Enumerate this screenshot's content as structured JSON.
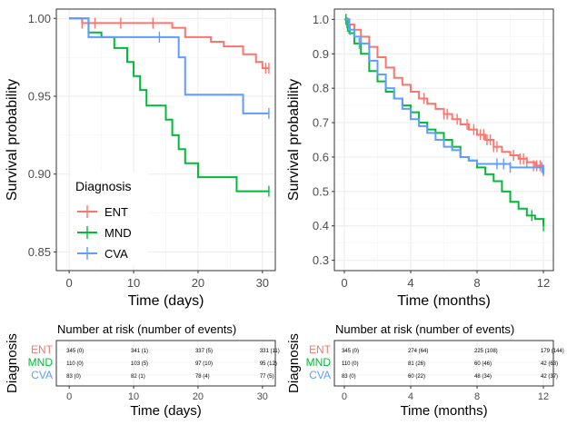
{
  "diagnosis_colors": {
    "ENT": "#F8766D",
    "MND": "#00BA38",
    "CVA": "#619CFF"
  },
  "chart_data": [
    {
      "type": "line",
      "step": true,
      "xlabel": "Time (days)",
      "ylabel": "Survival probability",
      "xlim": [
        -2,
        32
      ],
      "ylim": [
        0.838,
        1.006
      ],
      "xticks": [
        0,
        10,
        20,
        30
      ],
      "yticks": [
        "0.85",
        "0.90",
        "0.95",
        "1.00"
      ],
      "ytick_values": [
        0.85,
        0.9,
        0.95,
        1.0
      ],
      "grid": true,
      "legend": {
        "title": "Diagnosis",
        "position": "bottom-left",
        "entries": [
          "ENT",
          "MND",
          "CVA"
        ]
      },
      "series": [
        {
          "name": "ENT",
          "x": [
            0,
            2,
            5,
            16,
            18,
            20,
            22,
            24,
            27,
            29,
            30,
            31
          ],
          "y": [
            1.0,
            0.997,
            0.997,
            0.994,
            0.988,
            0.988,
            0.985,
            0.982,
            0.977,
            0.972,
            0.968,
            0.968
          ],
          "censor_x": [
            2,
            4,
            8,
            13,
            30.5,
            31
          ],
          "censor_y": [
            0.997,
            0.997,
            0.997,
            0.997,
            0.968,
            0.968
          ]
        },
        {
          "name": "MND",
          "x": [
            0,
            3,
            5,
            7,
            9,
            10,
            11,
            12,
            15,
            16,
            17,
            18,
            20,
            21,
            26,
            31
          ],
          "y": [
            1.0,
            0.991,
            0.988,
            0.981,
            0.972,
            0.963,
            0.954,
            0.944,
            0.935,
            0.925,
            0.916,
            0.907,
            0.898,
            0.898,
            0.889,
            0.889
          ],
          "censor_x": [
            3,
            31
          ],
          "censor_y": [
            0.991,
            0.889
          ]
        },
        {
          "name": "CVA",
          "x": [
            0,
            3,
            14,
            17,
            18,
            27,
            31
          ],
          "y": [
            1.0,
            0.988,
            0.988,
            0.975,
            0.951,
            0.939,
            0.939
          ],
          "censor_x": [
            14,
            31
          ],
          "censor_y": [
            0.988,
            0.939
          ]
        }
      ]
    },
    {
      "type": "line",
      "step": true,
      "xlabel": "Time (months)",
      "ylabel": "Survival probability",
      "xlim": [
        -0.6,
        12.6
      ],
      "ylim": [
        0.27,
        1.03
      ],
      "xticks": [
        0,
        4,
        8,
        12
      ],
      "yticks": [
        "0.3",
        "0.4",
        "0.5",
        "0.6",
        "0.7",
        "0.8",
        "0.9",
        "1.0"
      ],
      "ytick_values": [
        0.3,
        0.4,
        0.5,
        0.6,
        0.7,
        0.8,
        0.9,
        1.0
      ],
      "grid": true,
      "series": [
        {
          "name": "ENT",
          "x": [
            0,
            0.3,
            0.6,
            1,
            1.5,
            2,
            2.5,
            3,
            3.5,
            4,
            4.5,
            5,
            5.5,
            6,
            6.5,
            7,
            7.5,
            8,
            8.5,
            9,
            9.5,
            10,
            10.5,
            11,
            11.5,
            12
          ],
          "y": [
            1.0,
            0.985,
            0.97,
            0.95,
            0.92,
            0.89,
            0.86,
            0.83,
            0.81,
            0.79,
            0.77,
            0.755,
            0.74,
            0.725,
            0.71,
            0.695,
            0.68,
            0.665,
            0.65,
            0.63,
            0.615,
            0.605,
            0.595,
            0.585,
            0.575,
            0.56
          ],
          "censor_x": [
            0.1,
            0.2,
            4.8,
            6.0,
            6.2,
            6.8,
            7.4,
            7.8,
            8.2,
            8.4,
            8.6,
            8.8,
            9.0,
            9.2,
            10.2,
            10.6,
            10.8,
            11.0,
            11.4,
            11.6,
            11.8,
            12
          ],
          "censor_y": [
            1.0,
            0.99,
            0.77,
            0.725,
            0.725,
            0.71,
            0.695,
            0.68,
            0.665,
            0.665,
            0.65,
            0.65,
            0.63,
            0.63,
            0.605,
            0.595,
            0.595,
            0.585,
            0.575,
            0.575,
            0.575,
            0.56
          ]
        },
        {
          "name": "MND",
          "x": [
            0,
            0.3,
            0.6,
            1,
            1.5,
            2,
            2.5,
            3,
            3.5,
            4,
            4.5,
            5,
            5.5,
            6,
            6.5,
            7,
            7.5,
            8,
            8.5,
            9,
            9.5,
            10,
            10.5,
            11,
            11.5,
            12
          ],
          "y": [
            1.0,
            0.96,
            0.93,
            0.9,
            0.85,
            0.82,
            0.79,
            0.77,
            0.75,
            0.73,
            0.7,
            0.68,
            0.67,
            0.65,
            0.63,
            0.6,
            0.59,
            0.57,
            0.55,
            0.53,
            0.5,
            0.47,
            0.45,
            0.43,
            0.42,
            0.4
          ],
          "censor_x": [
            0.1,
            0.2,
            11.3,
            12
          ],
          "censor_y": [
            1.0,
            0.98,
            0.43,
            0.4
          ]
        },
        {
          "name": "CVA",
          "x": [
            0,
            0.3,
            0.6,
            1,
            1.5,
            2,
            2.5,
            3,
            3.5,
            4,
            4.5,
            5,
            5.5,
            6,
            6.5,
            7,
            7.5,
            8,
            9,
            9.5,
            10,
            11,
            12
          ],
          "y": [
            1.0,
            0.97,
            0.95,
            0.93,
            0.88,
            0.84,
            0.8,
            0.77,
            0.74,
            0.71,
            0.69,
            0.67,
            0.65,
            0.63,
            0.62,
            0.6,
            0.59,
            0.58,
            0.58,
            0.58,
            0.57,
            0.57,
            0.55
          ],
          "censor_x": [
            0.15,
            0.35,
            0.9,
            9.2,
            9.6,
            10.0,
            11.9
          ],
          "censor_y": [
            0.99,
            0.97,
            0.93,
            0.58,
            0.58,
            0.57,
            0.57
          ]
        }
      ]
    }
  ],
  "risk_tables": [
    {
      "title": "Number at risk (number of events)",
      "ylabel": "Diagnosis",
      "xlabel": "Time (days)",
      "xlim": [
        -2,
        32
      ],
      "xticks": [
        0,
        10,
        20,
        30
      ],
      "rows": [
        {
          "label": "ENT",
          "cells": [
            "345 (0)",
            "341 (1)",
            "337 (5)",
            "331 (11)"
          ]
        },
        {
          "label": "MND",
          "cells": [
            "110 (0)",
            "103 (5)",
            "97 (10)",
            "95 (12)"
          ]
        },
        {
          "label": "CVA",
          "cells": [
            "83 (0)",
            "82 (1)",
            "78 (4)",
            "77 (5)"
          ]
        }
      ]
    },
    {
      "title": "Number at risk (number of events)",
      "ylabel": "Diagnosis",
      "xlabel": "Time (months)",
      "xlim": [
        -0.6,
        12.6
      ],
      "xticks": [
        0,
        4,
        8,
        12
      ],
      "rows": [
        {
          "label": "ENT",
          "cells": [
            "345 (0)",
            "274 (64)",
            "225 (108)",
            "179 (144)"
          ]
        },
        {
          "label": "MND",
          "cells": [
            "110 (0)",
            "81 (26)",
            "60 (46)",
            "42 (63)"
          ]
        },
        {
          "label": "CVA",
          "cells": [
            "83 (0)",
            "60 (22)",
            "48 (34)",
            "42 (37)"
          ]
        }
      ]
    }
  ]
}
